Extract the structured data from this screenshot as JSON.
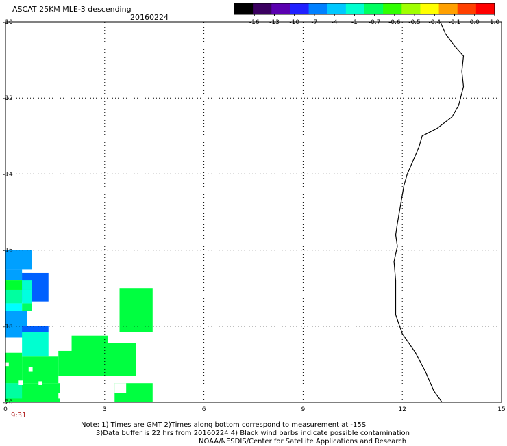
{
  "header": {
    "title": "ASCAT 25KM MLE-3 descending",
    "date": "20160224"
  },
  "colorbar": {
    "ticks": [
      "-16",
      "-13",
      "-10",
      "-7",
      "-4",
      "-1",
      "-0.7",
      "-0.6",
      "-0.5",
      "-0.4",
      "-0.1",
      "0.0",
      "1.0"
    ],
    "colors": [
      "#000000",
      "#3a0060",
      "#5a00b0",
      "#2020ff",
      "#0080ff",
      "#00c8ff",
      "#00ffd0",
      "#00ff60",
      "#30ff00",
      "#a0ff00",
      "#ffff00",
      "#ffa000",
      "#ff4000",
      "#ff0000"
    ]
  },
  "map": {
    "x_ticks": [
      "0",
      "3",
      "6",
      "9",
      "12",
      "15"
    ],
    "y_ticks": [
      "-10",
      "-12",
      "-14",
      "-16",
      "-18",
      "-20"
    ],
    "x_range": [
      0,
      15
    ],
    "y_range": [
      -20,
      -10
    ],
    "grid": "dotted",
    "time_label": "9:31",
    "coastline": [
      [
        13.15,
        -10.0
      ],
      [
        13.3,
        -10.3
      ],
      [
        13.55,
        -10.6
      ],
      [
        13.85,
        -10.9
      ],
      [
        13.8,
        -11.3
      ],
      [
        13.85,
        -11.7
      ],
      [
        13.7,
        -12.2
      ],
      [
        13.5,
        -12.5
      ],
      [
        13.05,
        -12.8
      ],
      [
        12.6,
        -13.0
      ],
      [
        12.5,
        -13.3
      ],
      [
        12.3,
        -13.7
      ],
      [
        12.15,
        -14.0
      ],
      [
        12.05,
        -14.3
      ],
      [
        11.95,
        -14.8
      ],
      [
        11.85,
        -15.3
      ],
      [
        11.8,
        -15.6
      ],
      [
        11.85,
        -15.9
      ],
      [
        11.75,
        -16.3
      ],
      [
        11.8,
        -16.8
      ],
      [
        11.8,
        -17.2
      ],
      [
        11.8,
        -17.7
      ],
      [
        12.0,
        -18.2
      ],
      [
        12.4,
        -18.7
      ],
      [
        12.7,
        -19.2
      ],
      [
        12.95,
        -19.7
      ],
      [
        13.2,
        -20.0
      ]
    ],
    "swath_cells": [
      {
        "x": 0.0,
        "y": -16.5,
        "w": 0.8,
        "h": 0.5,
        "color": "#00a0ff"
      },
      {
        "x": 0.0,
        "y": -16.8,
        "w": 0.5,
        "h": 0.3,
        "color": "#00a0ff"
      },
      {
        "x": 0.5,
        "y": -16.8,
        "w": 0.3,
        "h": 0.2,
        "color": "#00a0ff"
      },
      {
        "x": 0.5,
        "y": -17.35,
        "w": 0.8,
        "h": 0.75,
        "color": "#0060ff"
      },
      {
        "x": 0.0,
        "y": -17.05,
        "w": 0.5,
        "h": 0.25,
        "color": "#00ff30"
      },
      {
        "x": 0.5,
        "y": -17.05,
        "w": 0.3,
        "h": 0.25,
        "color": "#00ffd0"
      },
      {
        "x": 0.0,
        "y": -17.4,
        "w": 0.5,
        "h": 0.35,
        "color": "#00ffa0"
      },
      {
        "x": 0.5,
        "y": -17.4,
        "w": 0.3,
        "h": 0.35,
        "color": "#00ffe0"
      },
      {
        "x": 0.0,
        "y": -17.6,
        "w": 0.5,
        "h": 0.2,
        "color": "#00ffff"
      },
      {
        "x": 0.5,
        "y": -17.6,
        "w": 0.3,
        "h": 0.2,
        "color": "#00ff60"
      },
      {
        "x": 0.0,
        "y": -18.3,
        "w": 0.65,
        "h": 0.7,
        "color": "#00a0ff"
      },
      {
        "x": 3.45,
        "y": -18.15,
        "w": 1.0,
        "h": 1.15,
        "color": "#00ff40"
      },
      {
        "x": 0.5,
        "y": -18.15,
        "w": 0.8,
        "h": 0.15,
        "color": "#0060ff"
      },
      {
        "x": 0.5,
        "y": -18.8,
        "w": 0.8,
        "h": 0.65,
        "color": "#00ffd0"
      },
      {
        "x": 2.0,
        "y": -18.8,
        "w": 1.1,
        "h": 0.55,
        "color": "#00ff40"
      },
      {
        "x": 0.0,
        "y": -19.5,
        "w": 0.5,
        "h": 0.8,
        "color": "#00ff40"
      },
      {
        "x": 0.5,
        "y": -19.5,
        "w": 1.1,
        "h": 0.7,
        "color": "#00ff40"
      },
      {
        "x": 1.6,
        "y": -19.3,
        "w": 1.6,
        "h": 0.65,
        "color": "#00ff40"
      },
      {
        "x": 3.1,
        "y": -19.3,
        "w": 0.85,
        "h": 0.85,
        "color": "#00ff40"
      },
      {
        "x": 0.0,
        "y": -20.0,
        "w": 1.65,
        "h": 0.5,
        "color": "#00ff40"
      },
      {
        "x": 0.0,
        "y": -19.9,
        "w": 0.5,
        "h": 0.4,
        "color": "#00ffa0"
      },
      {
        "x": 3.3,
        "y": -20.0,
        "w": 1.15,
        "h": 0.5,
        "color": "#00ff40"
      }
    ],
    "swath_holes": [
      {
        "x": 0.7,
        "y": -19.2,
        "w": 0.12,
        "h": 0.12
      },
      {
        "x": 0.4,
        "y": -19.55,
        "w": 0.12,
        "h": 0.12
      },
      {
        "x": 1.0,
        "y": -19.55,
        "w": 0.1,
        "h": 0.1
      },
      {
        "x": 0.0,
        "y": -19.05,
        "w": 0.1,
        "h": 0.1
      },
      {
        "x": 1.6,
        "y": -19.9,
        "w": 0.15,
        "h": 0.15
      },
      {
        "x": 3.3,
        "y": -19.75,
        "w": 0.35,
        "h": 0.25
      },
      {
        "x": 0.0,
        "y": -18.45,
        "w": 0.12,
        "h": 0.12
      }
    ]
  },
  "notes": [
    "Note: 1) Times are GMT 2)Times along bottom correspond to measurement at -15S",
    "3)Data buffer is 22 hrs from 20160224 4) Black wind barbs indicate possible contamination",
    "NOAA/NESDIS/Center for Satellite Applications and Research"
  ]
}
